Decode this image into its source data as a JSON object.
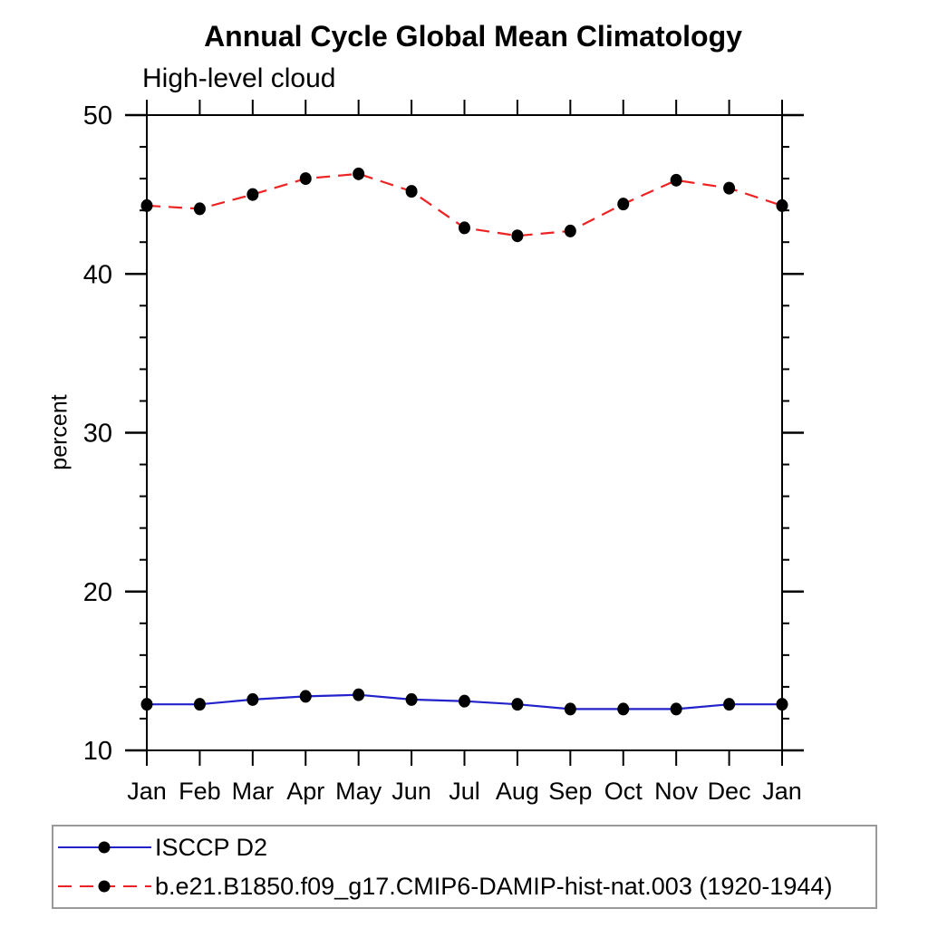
{
  "page": {
    "background": "#ffffff"
  },
  "chart_data": {
    "type": "line",
    "title": "Annual Cycle Global Mean Climatology",
    "subtitle": "High-level cloud",
    "ylabel": "percent",
    "xlabel": "",
    "categories": [
      "Jan",
      "Feb",
      "Mar",
      "Apr",
      "May",
      "Jun",
      "Jul",
      "Aug",
      "Sep",
      "Oct",
      "Nov",
      "Dec",
      "Jan"
    ],
    "ylim": [
      10,
      50
    ],
    "yticks": [
      10,
      20,
      30,
      40,
      50
    ],
    "ytick_labels": [
      "10",
      "20",
      "30",
      "40",
      "50"
    ],
    "y_minor_step": 2,
    "grid": false,
    "legend_position": "bottom-left",
    "axis_color": "#000000",
    "legend_border_color": "#999999",
    "marker": "filled-circle",
    "series": [
      {
        "name": "ISCCP D2",
        "color": "#2222cc",
        "line_style": "solid",
        "dash": "",
        "marker_color": "#000000",
        "values": [
          12.9,
          12.9,
          13.2,
          13.4,
          13.5,
          13.2,
          13.1,
          12.9,
          12.6,
          12.6,
          12.6,
          12.9,
          12.9
        ]
      },
      {
        "name": "b.e21.B1850.f09_g17.CMIP6-DAMIP-hist-nat.003 (1920-1944)",
        "color": "#ee2222",
        "line_style": "dashed",
        "dash": "15 9",
        "marker_color": "#000000",
        "values": [
          44.3,
          44.1,
          45.0,
          46.0,
          46.3,
          45.2,
          42.9,
          42.4,
          42.7,
          44.4,
          45.9,
          45.4,
          44.3
        ]
      }
    ]
  }
}
